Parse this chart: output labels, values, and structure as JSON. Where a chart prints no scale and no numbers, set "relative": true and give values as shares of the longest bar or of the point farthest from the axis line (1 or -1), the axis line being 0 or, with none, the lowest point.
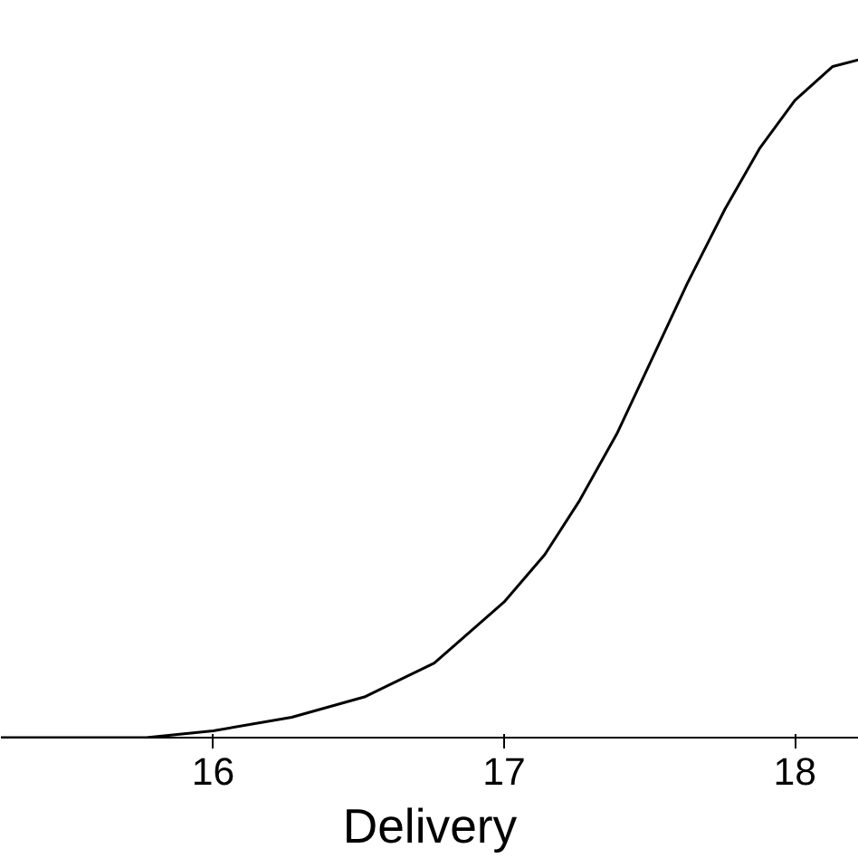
{
  "chart_data": {
    "type": "line",
    "xlabel": "Delivery",
    "relative": true,
    "color": "#000000",
    "x": [
      15.27,
      15.52,
      15.77,
      16.0,
      16.27,
      16.52,
      16.76,
      17.0,
      17.14,
      17.26,
      17.39,
      17.51,
      17.63,
      17.76,
      17.88,
      18.0,
      18.13,
      18.22
    ],
    "values": [
      0,
      0,
      0,
      0.01,
      0.03,
      0.06,
      0.11,
      0.2,
      0.27,
      0.35,
      0.45,
      0.56,
      0.67,
      0.78,
      0.87,
      0.94,
      0.99,
      1
    ],
    "xlim": [
      15.27,
      18.22
    ],
    "xticks": [
      16,
      17,
      18
    ],
    "grid": false,
    "line_style": "solid"
  }
}
